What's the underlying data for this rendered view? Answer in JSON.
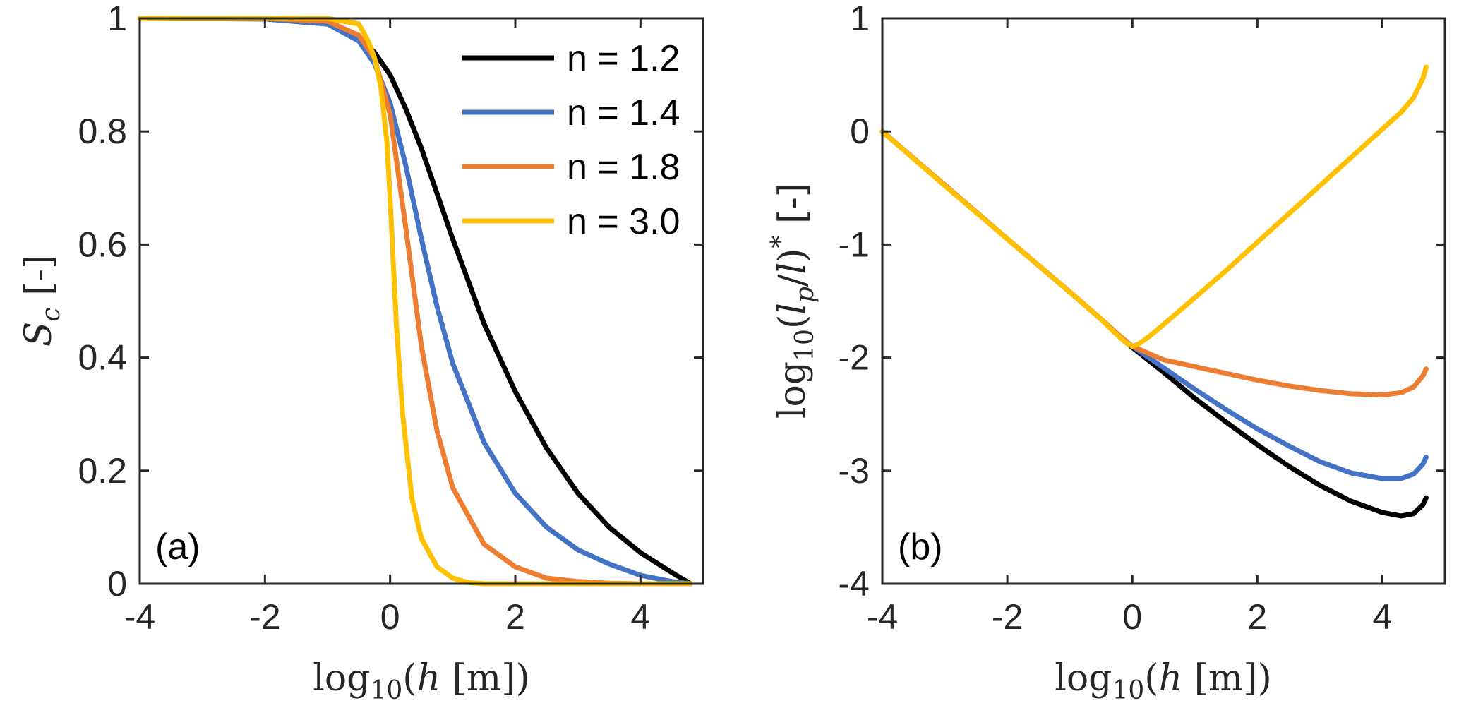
{
  "chart_data": [
    {
      "type": "line",
      "panel_label": "(a)",
      "xlabel": "log10(h [m])",
      "ylabel": "S_c [-]",
      "xlim": [
        -4,
        5
      ],
      "ylim": [
        0,
        1
      ],
      "xticks": [
        -4,
        -2,
        0,
        2,
        4
      ],
      "yticks": [
        0,
        0.2,
        0.4,
        0.6,
        0.8,
        1
      ],
      "ytick_labels": [
        "0",
        "0.2",
        "0.4",
        "0.6",
        "0.8",
        "1"
      ],
      "legend": "top-right",
      "grid": false,
      "series": [
        {
          "name": "n = 1.2",
          "color": "#000000",
          "x": [
            -4,
            -2,
            -1,
            -0.5,
            -0.25,
            0,
            0.25,
            0.5,
            0.75,
            1,
            1.5,
            2,
            2.5,
            3,
            3.5,
            4,
            4.5,
            4.8
          ],
          "y": [
            1.0,
            0.999,
            0.99,
            0.965,
            0.94,
            0.9,
            0.84,
            0.77,
            0.69,
            0.61,
            0.46,
            0.34,
            0.24,
            0.16,
            0.1,
            0.055,
            0.02,
            0.0
          ]
        },
        {
          "name": "n = 1.4",
          "color": "#4472C4",
          "x": [
            -4,
            -2,
            -1,
            -0.5,
            -0.25,
            0,
            0.25,
            0.5,
            0.75,
            1,
            1.5,
            2,
            2.5,
            3,
            3.5,
            4,
            4.5,
            4.8
          ],
          "y": [
            1.0,
            0.999,
            0.99,
            0.96,
            0.92,
            0.85,
            0.74,
            0.61,
            0.49,
            0.39,
            0.25,
            0.16,
            0.1,
            0.06,
            0.035,
            0.015,
            0.004,
            0.0
          ]
        },
        {
          "name": "n = 1.8",
          "color": "#ED7D31",
          "x": [
            -4,
            -2,
            -1,
            -0.5,
            -0.25,
            0,
            0.25,
            0.5,
            0.75,
            1,
            1.5,
            2,
            2.5,
            3,
            3.5,
            4,
            4.8
          ],
          "y": [
            1.0,
            1.0,
            0.995,
            0.97,
            0.93,
            0.83,
            0.63,
            0.42,
            0.27,
            0.17,
            0.07,
            0.03,
            0.01,
            0.004,
            0.001,
            0.0,
            0.0
          ]
        },
        {
          "name": "n = 3.0",
          "color": "#FFC000",
          "x": [
            -4,
            -2,
            -1,
            -0.5,
            -0.35,
            -0.25,
            -0.15,
            -0.05,
            0,
            0.1,
            0.2,
            0.35,
            0.5,
            0.75,
            1,
            1.25,
            1.5,
            2,
            3,
            4,
            4.8
          ],
          "y": [
            1.0,
            1.0,
            1.0,
            0.99,
            0.96,
            0.93,
            0.88,
            0.78,
            0.68,
            0.46,
            0.3,
            0.15,
            0.08,
            0.03,
            0.01,
            0.002,
            0.0,
            0.0,
            0.0,
            0.0,
            0.0
          ]
        }
      ]
    },
    {
      "type": "line",
      "panel_label": "(b)",
      "xlabel": "log10(h [m])",
      "ylabel": "log10(l_p/l)* [-]",
      "xlim": [
        -4,
        5
      ],
      "ylim": [
        -4,
        1
      ],
      "xticks": [
        -4,
        -2,
        0,
        2,
        4
      ],
      "yticks": [
        -4,
        -3,
        -2,
        -1,
        0,
        1
      ],
      "ytick_labels": [
        "-4",
        "-3",
        "-2",
        "-1",
        "0",
        "1"
      ],
      "grid": false,
      "series": [
        {
          "color": "#000000",
          "x": [
            -4,
            -2,
            -1,
            -0.5,
            -0.2,
            0,
            0.5,
            1,
            1.5,
            2,
            2.5,
            3,
            3.5,
            4,
            4.3,
            4.5,
            4.65,
            4.7
          ],
          "y": [
            0,
            -0.95,
            -1.42,
            -1.66,
            -1.81,
            -1.91,
            -2.13,
            -2.36,
            -2.57,
            -2.77,
            -2.96,
            -3.13,
            -3.27,
            -3.37,
            -3.4,
            -3.38,
            -3.3,
            -3.24
          ]
        },
        {
          "color": "#4472C4",
          "x": [
            -4,
            -2,
            -1,
            -0.5,
            -0.2,
            0,
            0.5,
            1,
            1.5,
            2,
            2.5,
            3,
            3.5,
            4,
            4.3,
            4.5,
            4.65,
            4.7
          ],
          "y": [
            0,
            -0.95,
            -1.42,
            -1.66,
            -1.81,
            -1.9,
            -2.09,
            -2.28,
            -2.46,
            -2.63,
            -2.78,
            -2.92,
            -3.02,
            -3.07,
            -3.07,
            -3.03,
            -2.94,
            -2.88
          ]
        },
        {
          "color": "#ED7D31",
          "x": [
            -4,
            -2,
            -1,
            -0.5,
            -0.2,
            0,
            0.5,
            1,
            1.5,
            2,
            2.5,
            3,
            3.5,
            4,
            4.3,
            4.5,
            4.65,
            4.7
          ],
          "y": [
            0,
            -0.95,
            -1.42,
            -1.66,
            -1.81,
            -1.9,
            -2.02,
            -2.08,
            -2.14,
            -2.2,
            -2.25,
            -2.29,
            -2.32,
            -2.33,
            -2.31,
            -2.26,
            -2.16,
            -2.1
          ]
        },
        {
          "color": "#FFC000",
          "x": [
            -4,
            -3,
            -2,
            -1,
            -0.5,
            -0.3,
            -0.1,
            0,
            0.1,
            0.3,
            0.6,
            1,
            1.5,
            2,
            2.5,
            3,
            3.5,
            4,
            4.3,
            4.5,
            4.65,
            4.7
          ],
          "y": [
            0,
            -0.48,
            -0.95,
            -1.42,
            -1.66,
            -1.77,
            -1.87,
            -1.9,
            -1.88,
            -1.8,
            -1.66,
            -1.47,
            -1.23,
            -0.98,
            -0.73,
            -0.48,
            -0.23,
            0.02,
            0.17,
            0.3,
            0.47,
            0.57
          ]
        }
      ]
    }
  ]
}
